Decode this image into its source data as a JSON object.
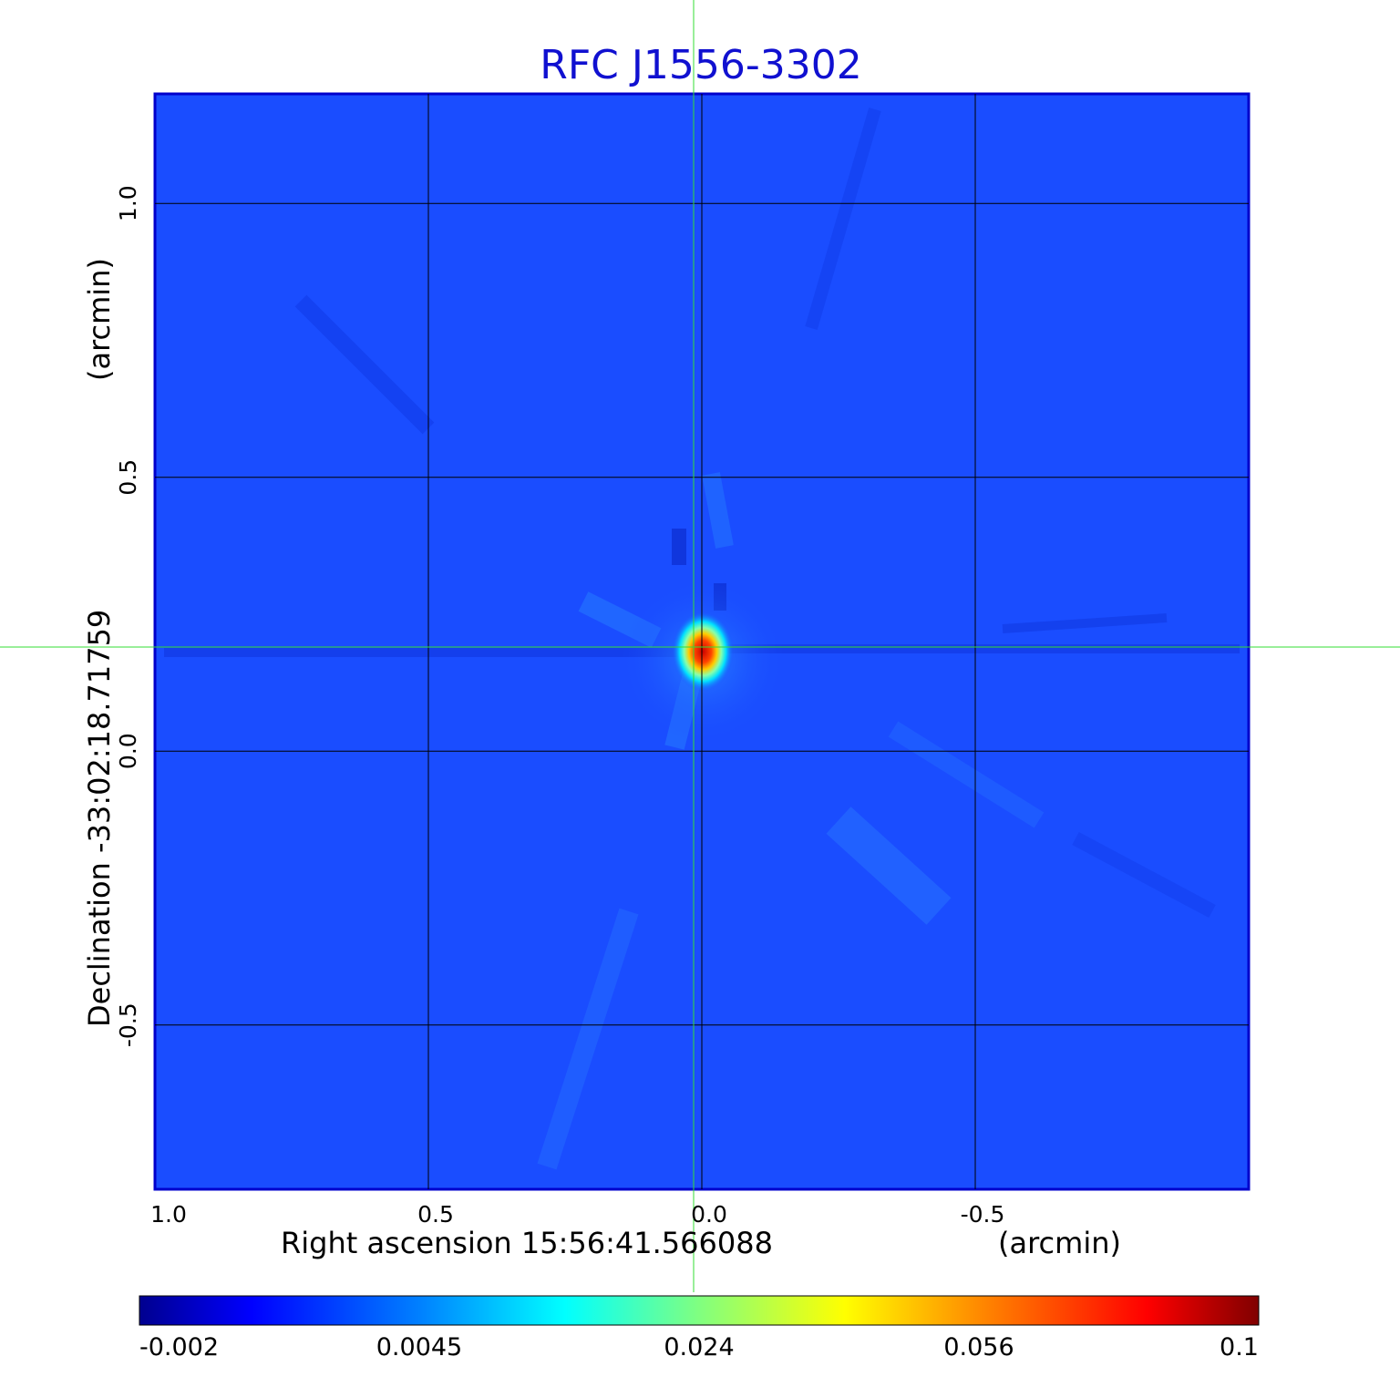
{
  "chart_data": {
    "type": "heatmap",
    "title": "RFC J1556-3302",
    "xlabel": "Right ascension  15:56:41.566088",
    "xlabel_unit": "(arcmin)",
    "ylabel": "Declination  -33:02:18.71759",
    "ylabel_unit": "(arcmin)",
    "x_ticks": [
      1.0,
      0.5,
      0.0,
      -0.5
    ],
    "x_tick_labels": [
      "1.0",
      "0.5",
      "0.0",
      "-0.5"
    ],
    "y_ticks": [
      1.0,
      0.5,
      0.0,
      -0.5
    ],
    "y_tick_labels": [
      "1.0",
      "0.5",
      "0.0",
      "-0.5"
    ],
    "xlim": [
      1.0,
      -1.0
    ],
    "ylim": [
      -0.8,
      1.2
    ],
    "grid": true,
    "crosshair": {
      "x": 0.015,
      "y": 0.19,
      "color": "#33dd33"
    },
    "peak": {
      "x": -0.005,
      "y": 0.185,
      "value": 0.1
    },
    "colorbar": {
      "colormap": "jet",
      "ticks": [
        -0.002,
        0.0045,
        0.024,
        0.056,
        0.1
      ],
      "tick_labels": [
        "-0.002",
        "0.0045",
        "0.024",
        "0.056",
        "0.1"
      ],
      "colors": [
        "#00008f",
        "#0000ff",
        "#00ffff",
        "#ffff00",
        "#ff0000",
        "#800000"
      ]
    },
    "background_color": "#1a4dff",
    "grid_color": "#000000"
  }
}
